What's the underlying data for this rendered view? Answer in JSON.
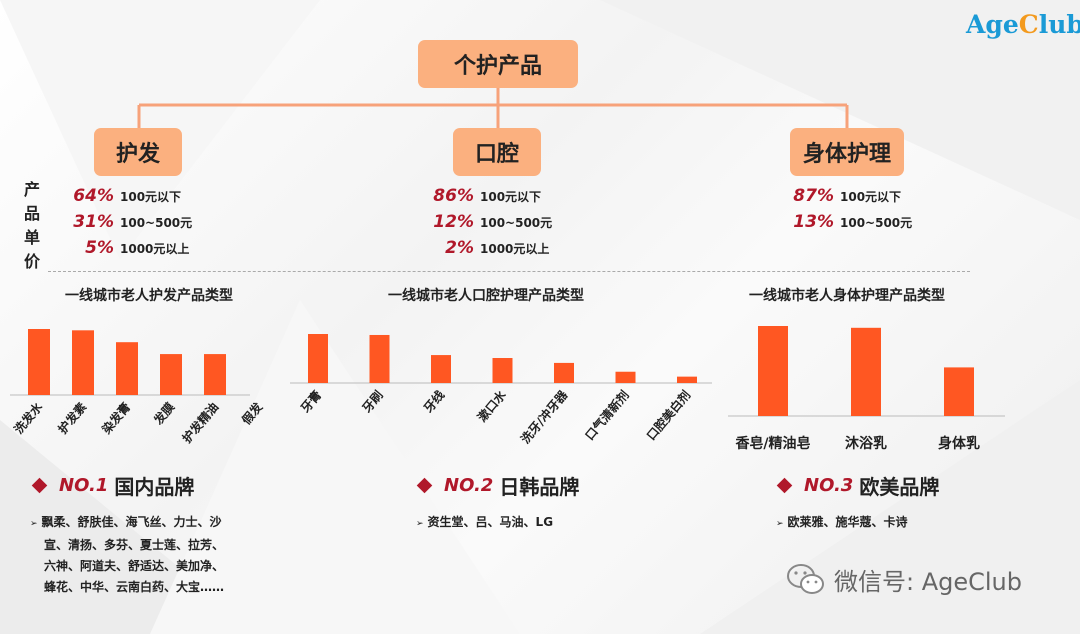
{
  "logo": {
    "brand_a": "Age",
    "brand_c": "C",
    "brand_rest": "lub"
  },
  "root": {
    "label": "个护产品"
  },
  "categories": [
    {
      "label": "护发",
      "prices": [
        {
          "pct": "64%",
          "range": "100元以下"
        },
        {
          "pct": "31%",
          "range": "100~500元"
        },
        {
          "pct": "5%",
          "range": "1000元以上"
        }
      ]
    },
    {
      "label": "口腔",
      "prices": [
        {
          "pct": "86%",
          "range": "100元以下"
        },
        {
          "pct": "12%",
          "range": "100~500元"
        },
        {
          "pct": "2%",
          "range": "1000元以上"
        }
      ]
    },
    {
      "label": "身体护理",
      "prices": [
        {
          "pct": "87%",
          "range": "100元以下"
        },
        {
          "pct": "13%",
          "range": "100~500元"
        }
      ]
    }
  ],
  "side_label": "产品单价",
  "chart_data": [
    {
      "type": "bar",
      "title": "一线城市老人护发产品类型",
      "categories": [
        "洗发水",
        "护发素",
        "染发膏",
        "发膜",
        "护发精油",
        "假发"
      ],
      "values": [
        100,
        98,
        80,
        62,
        62,
        0
      ],
      "ylim": [
        0,
        100
      ],
      "grid": false,
      "legend": "none"
    },
    {
      "type": "bar",
      "title": "一线城市老人口腔护理产品类型",
      "categories": [
        "牙膏",
        "牙刷",
        "牙线",
        "漱口水",
        "洗牙/冲牙器",
        "口气清新剂",
        "口腔美白剂"
      ],
      "values": [
        100,
        98,
        57,
        51,
        41,
        23,
        13
      ],
      "ylim": [
        0,
        100
      ],
      "grid": false,
      "legend": "none"
    },
    {
      "type": "bar",
      "title": "一线城市老人身体护理产品类型",
      "categories": [
        "香皂/精油皂",
        "沐浴乳",
        "身体乳"
      ],
      "values": [
        100,
        98,
        54
      ],
      "ylim": [
        0,
        100
      ],
      "grid": false,
      "legend": "none"
    }
  ],
  "brands": [
    {
      "no": "NO.1",
      "title": "国内品牌",
      "lines": [
        "飘柔、舒肤佳、海飞丝、力士、沙",
        "宣、清扬、多芬、夏士莲、拉芳、",
        "六神、阿道夫、舒适达、美加净、",
        "蜂花、中华、云南白药、大宝……"
      ]
    },
    {
      "no": "NO.2",
      "title": "日韩品牌",
      "lines": [
        "资生堂、吕、马油、LG"
      ]
    },
    {
      "no": "NO.3",
      "title": "欧美品牌",
      "lines": [
        "欧莱雅、施华蔻、卡诗"
      ]
    }
  ],
  "wechat": {
    "text": "微信号: AgeClub"
  },
  "colors": {
    "bar": "#ff5722",
    "box": "#fbb07f",
    "accent": "#b0182a",
    "connector": "#f7a27a",
    "logo_blue": "#1a9ad6",
    "logo_orange": "#f39a1e"
  }
}
